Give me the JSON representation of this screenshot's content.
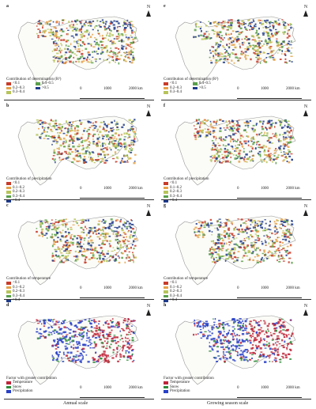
{
  "north_label": "N",
  "scale": [
    "0",
    "1000",
    "2000 km"
  ],
  "captions": {
    "left": "Annual scale",
    "right": "Growing season scale"
  },
  "colors": {
    "c_low": "#c83c2a",
    "c_mid1": "#e6a24a",
    "c_mid2": "#b7c45a",
    "c_mid3": "#5aa04a",
    "c_high": "#1e3a8a",
    "temperature": "#c0263a",
    "snow": "#2e8b3a",
    "precipitation": "#2840c8",
    "outline": "#999999"
  },
  "panels": [
    {
      "letter": "a",
      "legend_title": "Contribution of determination (R²)",
      "legend": [
        "<0.1",
        "0.4–0.5",
        "0.2–0.3",
        ">0.5",
        "0.3–0.4"
      ],
      "two_col": true
    },
    {
      "letter": "e",
      "legend_title": "Contribution of determination (R²)",
      "legend": [
        "<0.1",
        "0.4–0.5",
        "0.2–0.3",
        ">0.5",
        "0.3–0.4"
      ],
      "two_col": true
    },
    {
      "letter": "b",
      "legend_title": "Contribution of precipitation",
      "legend": [
        "<0.1",
        "0.1–0.2",
        "0.2–0.3",
        "0.3–0.4",
        ">0.4"
      ],
      "two_col": false
    },
    {
      "letter": "f",
      "legend_title": "Contribution of precipitation",
      "legend": [
        "<0.1",
        "0.1–0.2",
        "0.2–0.3",
        "0.3–0.4",
        ">0.4"
      ],
      "two_col": false
    },
    {
      "letter": "c",
      "legend_title": "Contribution of temperature",
      "legend": [
        "<0.1",
        "0.1–0.2",
        "0.2–0.3",
        "0.3–0.4",
        ">0.4"
      ],
      "two_col": false
    },
    {
      "letter": "g",
      "legend_title": "Contribution of temperature",
      "legend": [
        "<0.1",
        "0.1–0.2",
        "0.2–0.3",
        "0.3–0.4",
        ">0.4"
      ],
      "two_col": false
    },
    {
      "letter": "d",
      "legend_title": "Factor with greater contribution",
      "legend": [
        "Temperature",
        "Snow",
        "Precipitation"
      ],
      "two_col": false
    },
    {
      "letter": "h",
      "legend_title": "Factor with greater contribution",
      "legend": [
        "Temperature",
        "Snow",
        "Precipitation"
      ],
      "two_col": false
    }
  ]
}
